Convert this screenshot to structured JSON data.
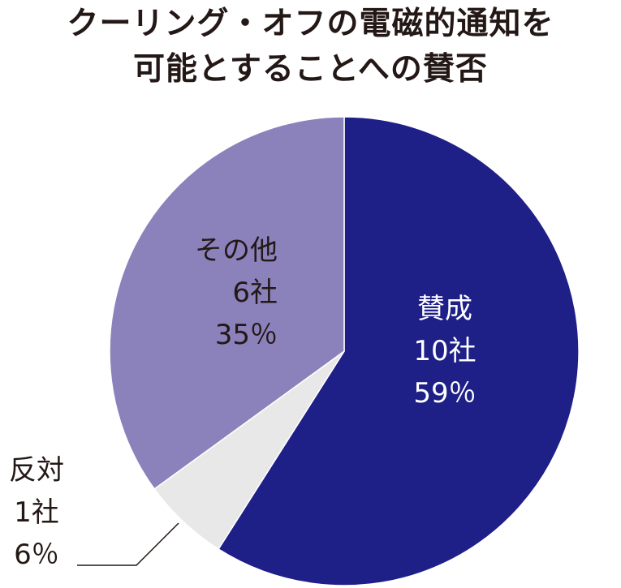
{
  "chart_data": {
    "type": "pie",
    "title": [
      "クーリング・オフの電磁的通知を",
      "可能とすることへの賛否"
    ],
    "slices": [
      {
        "name": "賛成",
        "count": "10社",
        "value": 59,
        "pct": "59％",
        "color": "#1e1f87",
        "text_color": "#ffffff"
      },
      {
        "name": "反対",
        "count": "1社",
        "value": 6,
        "pct": "6％",
        "color": "#e8e8e8",
        "text_color": "#231815"
      },
      {
        "name": "その他",
        "count": "6社",
        "value": 35,
        "pct": "35％",
        "color": "#8b81bb",
        "text_color": "#231815"
      }
    ],
    "start_angle_deg": 0,
    "direction": "clockwise",
    "legend": "none"
  }
}
